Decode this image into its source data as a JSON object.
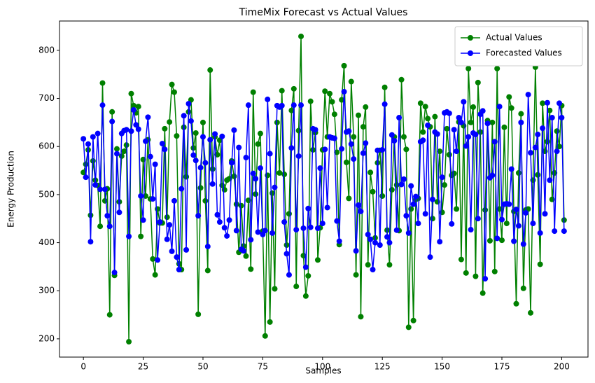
{
  "chart_data": {
    "type": "line",
    "title": "TimeMix Forecast vs Actual Values",
    "x_label": "Samples",
    "y_label": "Energy Production",
    "x": [
      0,
      1,
      2,
      3,
      4,
      5,
      6,
      7,
      8,
      9,
      10,
      11,
      12,
      13,
      14,
      15,
      16,
      17,
      18,
      19,
      20,
      21,
      22,
      23,
      24,
      25,
      26,
      27,
      28,
      29,
      30,
      31,
      32,
      33,
      34,
      35,
      36,
      37,
      38,
      39,
      40,
      41,
      42,
      43,
      44,
      45,
      46,
      47,
      48,
      49,
      50,
      51,
      52,
      53,
      54,
      55,
      56,
      57,
      58,
      59,
      60,
      61,
      62,
      63,
      64,
      65,
      66,
      67,
      68,
      69,
      70,
      71,
      72,
      73,
      74,
      75,
      76,
      77,
      78,
      79,
      80,
      81,
      82,
      83,
      84,
      85,
      86,
      87,
      88,
      89,
      90,
      91,
      92,
      93,
      94,
      95,
      96,
      97,
      98,
      99,
      100,
      101,
      102,
      103,
      104,
      105,
      106,
      107,
      108,
      109,
      110,
      111,
      112,
      113,
      114,
      115,
      116,
      117,
      118,
      119,
      120,
      121,
      122,
      123,
      124,
      125,
      126,
      127,
      128,
      129,
      130,
      131,
      132,
      133,
      134,
      135,
      136,
      137,
      138,
      139,
      140,
      141,
      142,
      143,
      144,
      145,
      146,
      147,
      148,
      149,
      150,
      151,
      152,
      153,
      154,
      155,
      156,
      157,
      158,
      159,
      160,
      161,
      162,
      163,
      164,
      165,
      166,
      167,
      168,
      169,
      170,
      171,
      172,
      173,
      174,
      175,
      176,
      177,
      178,
      179,
      180,
      181,
      182,
      183,
      184,
      185,
      186,
      187,
      188,
      189,
      190,
      191,
      192,
      193,
      194,
      195,
      196,
      197,
      198,
      199,
      200,
      201
    ],
    "series": [
      {
        "name": "Actual Values",
        "color": "green",
        "values": [
          546,
          563,
          593,
          457,
          570,
          530,
          519,
          434,
          732,
          487,
          512,
          250,
          672,
          332,
          595,
          485,
          580,
          590,
          603,
          194,
          710,
          685,
          670,
          683,
          413,
          573,
          497,
          614,
          491,
          366,
          333,
          470,
          441,
          441,
          637,
          453,
          651,
          729,
          713,
          622,
          356,
          344,
          640,
          537,
          672,
          697,
          597,
          628,
          251,
          514,
          650,
          487,
          342,
          759,
          553,
          620,
          583,
          613,
          519,
          510,
          530,
          533,
          570,
          538,
          480,
          380,
          477,
          393,
          372,
          488,
          345,
          713,
          501,
          605,
          627,
          424,
          206,
          540,
          235,
          503,
          304,
          650,
          545,
          716,
          542,
          395,
          460,
          675,
          720,
          309,
          633,
          829,
          373,
          289,
          331,
          694,
          593,
          629,
          364,
          431,
          593,
          715,
          620,
          710,
          693,
          667,
          588,
          396,
          697,
          768,
          567,
          492,
          735,
          620,
          333,
          665,
          246,
          641,
          682,
          354,
          546,
          506,
          410,
          566,
          592,
          497,
          723,
          426,
          354,
          510,
          620,
          520,
          425,
          739,
          620,
          594,
          224,
          470,
          238,
          490,
          492,
          690,
          630,
          683,
          658,
          641,
          450,
          662,
          485,
          590,
          463,
          520,
          637,
          583,
          540,
          544,
          470,
          651,
          365,
          643,
          337,
          762,
          650,
          682,
          330,
          733,
          630,
          295,
          468,
          654,
          404,
          650,
          340,
          762,
          470,
          405,
          640,
          440,
          703,
          680,
          465,
          273,
          545,
          668,
          305,
          468,
          470,
          254,
          530,
          765,
          541,
          355,
          690,
          590,
          610,
          675,
          490,
          545,
          632,
          600,
          685,
          447
        ]
      },
      {
        "name": "Forecasted Values",
        "color": "blue",
        "values": [
          616,
          536,
          605,
          402,
          620,
          520,
          627,
          511,
          686,
          511,
          456,
          434,
          652,
          338,
          585,
          463,
          627,
          633,
          635,
          413,
          632,
          676,
          645,
          636,
          497,
          447,
          611,
          661,
          579,
          491,
          563,
          364,
          443,
          606,
          594,
          407,
          437,
          382,
          487,
          370,
          344,
          512,
          664,
          385,
          689,
          653,
          582,
          571,
          456,
          556,
          620,
          566,
          392,
          614,
          522,
          626,
          458,
          443,
          621,
          431,
          414,
          447,
          566,
          634,
          425,
          598,
          386,
          383,
          577,
          686,
          406,
          544,
          533,
          422,
          555,
          417,
          425,
          698,
          585,
          420,
          515,
          685,
          682,
          685,
          443,
          377,
          333,
          597,
          686,
          427,
          580,
          686,
          430,
          349,
          471,
          432,
          637,
          635,
          430,
          555,
          440,
          594,
          473,
          620,
          618,
          617,
          445,
          403,
          595,
          714,
          630,
          632,
          605,
          574,
          383,
          478,
          465,
          586,
          607,
          417,
          407,
          344,
          400,
          592,
          395,
          593,
          688,
          412,
          400,
          624,
          612,
          426,
          660,
          521,
          532,
          456,
          420,
          518,
          480,
          496,
          440,
          610,
          613,
          460,
          644,
          370,
          490,
          630,
          626,
          402,
          536,
          670,
          672,
          669,
          439,
          635,
          590,
          660,
          650,
          693,
          601,
          620,
          427,
          628,
          625,
          450,
          667,
          674,
          325,
          648,
          535,
          540,
          610,
          409,
          683,
          448,
          480,
          481,
          480,
          553,
          403,
          469,
          435,
          650,
          397,
          462,
          708,
          587,
          440,
          598,
          625,
          420,
          638,
          460,
          691,
          530,
          660,
          424,
          590,
          690,
          660,
          424
        ]
      }
    ],
    "xlim": [
      -10,
      211
    ],
    "ylim": [
      162,
      861
    ],
    "xticks": [
      0,
      25,
      50,
      75,
      100,
      125,
      150,
      175,
      200
    ],
    "yticks": [
      200,
      300,
      400,
      500,
      600,
      700,
      800
    ],
    "legend": "upper right"
  }
}
